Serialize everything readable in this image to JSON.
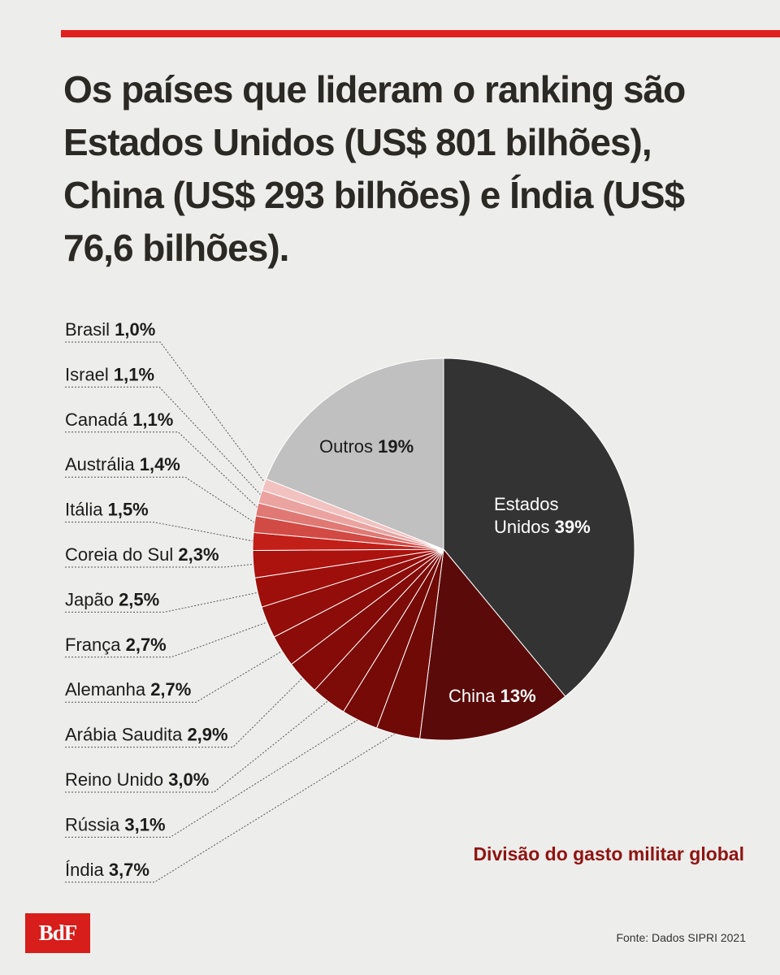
{
  "headline": "Os países que lideram o ranking são Estados Unidos (US$ 801 bilhões), China (US$ 293 bilhões) e Índia (US$ 76,6 bilhões).",
  "subtitle": "Divisão do gasto militar global",
  "source": "Fonte: Dados SIPRI 2021",
  "logo": "BdF",
  "chart_data": {
    "type": "pie",
    "slices": [
      {
        "name": "Estados Unidos",
        "label_lines": [
          "Estados",
          "Unidos"
        ],
        "pct_label": "39%",
        "value": 39,
        "color": "#333333"
      },
      {
        "name": "China",
        "pct_label": "13%",
        "value": 13,
        "color": "#5a0b09"
      },
      {
        "name": "Índia",
        "pct_label": "3,7%",
        "value": 3.7,
        "color": "#6f0a07"
      },
      {
        "name": "Rússia",
        "pct_label": "3,1%",
        "value": 3.1,
        "color": "#760a07"
      },
      {
        "name": "Reino Unido",
        "pct_label": "3,0%",
        "value": 3.0,
        "color": "#7d0b08"
      },
      {
        "name": "Arábia Saudita",
        "pct_label": "2,9%",
        "value": 2.9,
        "color": "#840b08"
      },
      {
        "name": "Alemanha",
        "pct_label": "2,7%",
        "value": 2.7,
        "color": "#8b0c09"
      },
      {
        "name": "França",
        "pct_label": "2,7%",
        "value": 2.7,
        "color": "#930d0a"
      },
      {
        "name": "Japão",
        "pct_label": "2,5%",
        "value": 2.5,
        "color": "#9e0f0b"
      },
      {
        "name": "Coreia do Sul",
        "pct_label": "2,3%",
        "value": 2.3,
        "color": "#ac120e"
      },
      {
        "name": "Itália",
        "pct_label": "1,5%",
        "value": 1.5,
        "color": "#c21f19"
      },
      {
        "name": "Austrália",
        "pct_label": "1,4%",
        "value": 1.4,
        "color": "#d24a44"
      },
      {
        "name": "Canadá",
        "pct_label": "1,1%",
        "value": 1.1,
        "color": "#e07874"
      },
      {
        "name": "Israel",
        "pct_label": "1,1%",
        "value": 1.1,
        "color": "#eba3a0"
      },
      {
        "name": "Brasil",
        "pct_label": "1,0%",
        "value": 1.0,
        "color": "#f2c2c0"
      },
      {
        "name": "Outros",
        "pct_label": "19%",
        "value": 19,
        "color": "#c0c0c0"
      }
    ]
  }
}
